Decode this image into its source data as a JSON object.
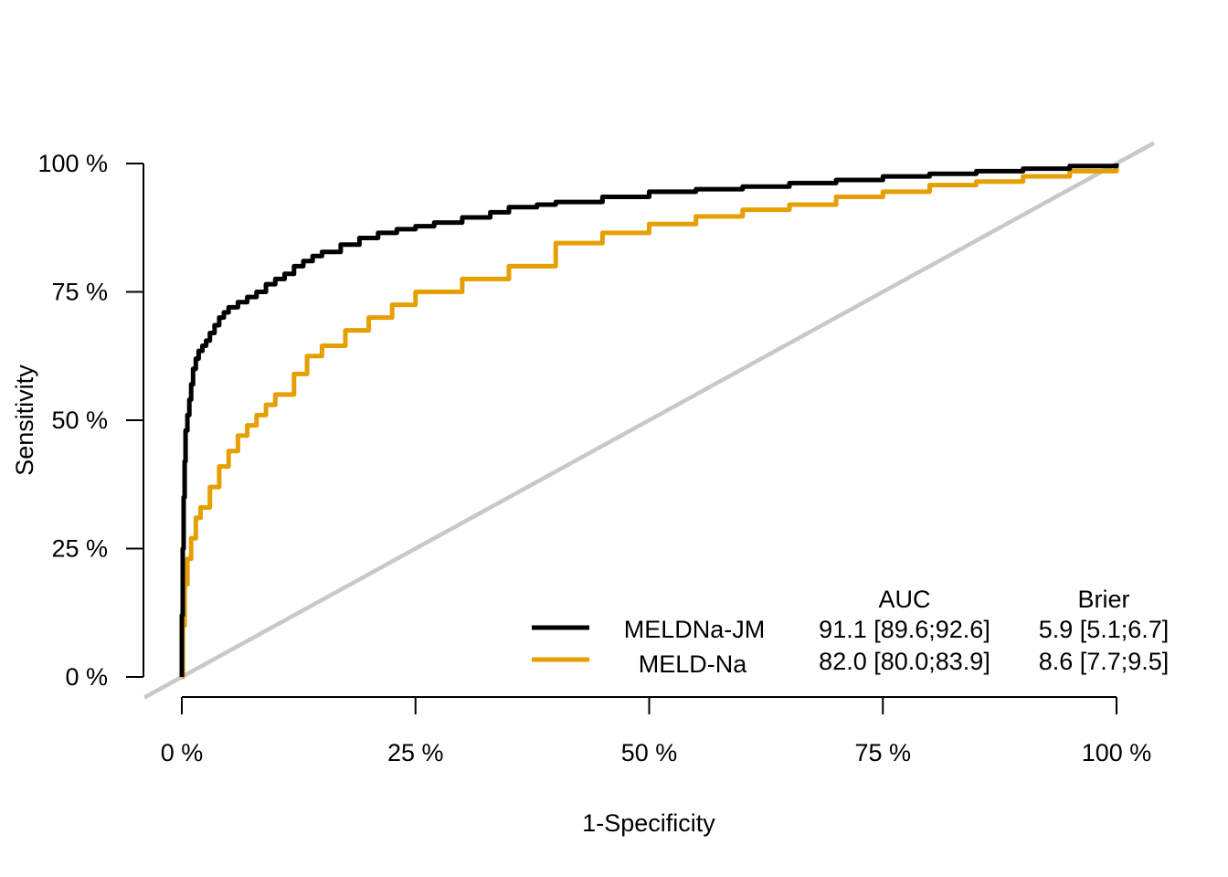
{
  "chart_data": {
    "type": "line",
    "xlabel": "1-Specificity",
    "ylabel": "Sensitivity",
    "xlim": [
      0,
      1
    ],
    "ylim": [
      0,
      1
    ],
    "x_ticks": [
      0,
      0.25,
      0.5,
      0.75,
      1
    ],
    "y_ticks": [
      0,
      0.25,
      0.5,
      0.75,
      1
    ],
    "x_tick_labels": [
      "0 %",
      "25 %",
      "50 %",
      "75 %",
      "100 %"
    ],
    "y_tick_labels": [
      "0 %",
      "25 %",
      "50 %",
      "75 %",
      "100 %"
    ],
    "grid": false,
    "legend_position": "bottom-right",
    "legend_headers": {
      "auc": "AUC",
      "brier": "Brier"
    },
    "reference_line": {
      "from": [
        0,
        0
      ],
      "to": [
        1,
        1
      ],
      "color": "#c8c8c8"
    },
    "series": [
      {
        "name": "MELDNa-JM",
        "color": "#000000",
        "auc": "91.1 [89.6;92.6]",
        "brier": "5.9 [5.1;6.7]",
        "x": [
          0,
          0,
          0.001,
          0.002,
          0.003,
          0.004,
          0.006,
          0.008,
          0.01,
          0.012,
          0.015,
          0.018,
          0.022,
          0.026,
          0.03,
          0.035,
          0.04,
          0.045,
          0.05,
          0.06,
          0.07,
          0.08,
          0.09,
          0.1,
          0.11,
          0.12,
          0.13,
          0.14,
          0.15,
          0.17,
          0.19,
          0.21,
          0.23,
          0.25,
          0.27,
          0.3,
          0.33,
          0.35,
          0.38,
          0.4,
          0.45,
          0.5,
          0.55,
          0.6,
          0.65,
          0.7,
          0.75,
          0.8,
          0.85,
          0.9,
          0.95,
          1
        ],
        "y": [
          0,
          0.12,
          0.25,
          0.35,
          0.42,
          0.48,
          0.51,
          0.54,
          0.57,
          0.6,
          0.62,
          0.635,
          0.645,
          0.655,
          0.67,
          0.685,
          0.7,
          0.71,
          0.72,
          0.73,
          0.74,
          0.75,
          0.765,
          0.775,
          0.785,
          0.8,
          0.81,
          0.82,
          0.828,
          0.842,
          0.855,
          0.865,
          0.872,
          0.878,
          0.885,
          0.895,
          0.905,
          0.915,
          0.92,
          0.925,
          0.935,
          0.945,
          0.95,
          0.955,
          0.962,
          0.968,
          0.975,
          0.98,
          0.985,
          0.99,
          0.995,
          1
        ]
      },
      {
        "name": "MELD-Na",
        "color": "#e69f00",
        "auc": "82.0 [80.0;83.9]",
        "brier": "8.6 [7.7;9.5]",
        "x": [
          0,
          0.001,
          0.003,
          0.006,
          0.01,
          0.015,
          0.02,
          0.03,
          0.04,
          0.05,
          0.06,
          0.07,
          0.08,
          0.09,
          0.1,
          0.12,
          0.134,
          0.15,
          0.175,
          0.2,
          0.225,
          0.25,
          0.3,
          0.35,
          0.4,
          0.45,
          0.5,
          0.55,
          0.6,
          0.65,
          0.7,
          0.75,
          0.8,
          0.85,
          0.9,
          0.95,
          1
        ],
        "y": [
          0,
          0.1,
          0.18,
          0.23,
          0.27,
          0.31,
          0.33,
          0.37,
          0.41,
          0.44,
          0.47,
          0.49,
          0.51,
          0.53,
          0.55,
          0.59,
          0.625,
          0.645,
          0.675,
          0.7,
          0.725,
          0.75,
          0.775,
          0.8,
          0.845,
          0.865,
          0.882,
          0.897,
          0.91,
          0.92,
          0.935,
          0.945,
          0.958,
          0.965,
          0.975,
          0.985,
          1
        ]
      }
    ]
  }
}
